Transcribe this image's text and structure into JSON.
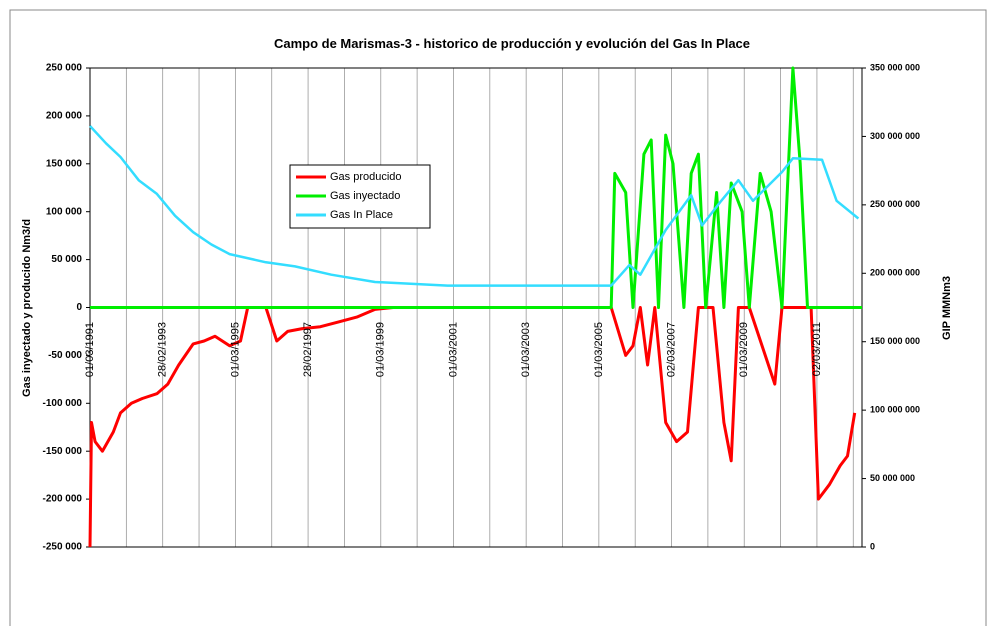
{
  "chart_data": {
    "type": "line",
    "title": "Campo de Marismas-3  -  historico de producción y evolución del Gas In Place",
    "ylabel": "Gas inyectado y producido Nm3/d",
    "y2label": "GIP MMNm3",
    "xlim": [
      1991.16,
      2012.4
    ],
    "xticks": [
      {
        "value": 1991.16,
        "label": "01/03/1991"
      },
      {
        "value": 1993.16,
        "label": "28/02/1993"
      },
      {
        "value": 1995.16,
        "label": "01/03/1995"
      },
      {
        "value": 1997.16,
        "label": "28/02/1997"
      },
      {
        "value": 1999.16,
        "label": "01/03/1999"
      },
      {
        "value": 2001.16,
        "label": "01/03/2001"
      },
      {
        "value": 2003.16,
        "label": "01/03/2003"
      },
      {
        "value": 2005.16,
        "label": "01/03/2005"
      },
      {
        "value": 2007.16,
        "label": "02/03/2007"
      },
      {
        "value": 2009.16,
        "label": "01/03/2009"
      },
      {
        "value": 2011.16,
        "label": "02/03/2011"
      }
    ],
    "ylim": [
      -250000,
      250000
    ],
    "yticks": [
      {
        "value": -250000,
        "label": "-250 000"
      },
      {
        "value": -200000,
        "label": "-200 000"
      },
      {
        "value": -150000,
        "label": "-150 000"
      },
      {
        "value": -100000,
        "label": "-100 000"
      },
      {
        "value": -50000,
        "label": "-50 000"
      },
      0,
      {
        "value": 50000,
        "label": "50 000"
      },
      {
        "value": 100000,
        "label": "100 000"
      },
      {
        "value": 150000,
        "label": "150 000"
      },
      {
        "value": 200000,
        "label": "200 000"
      },
      {
        "value": 250000,
        "label": "250 000"
      }
    ],
    "y2lim": [
      0,
      350000000
    ],
    "y2ticks": [
      0,
      {
        "value": 50000000,
        "label": "50 000 000"
      },
      {
        "value": 100000000,
        "label": "100 000 000"
      },
      {
        "value": 150000000,
        "label": "150 000 000"
      },
      {
        "value": 200000000,
        "label": "200 000 000"
      },
      {
        "value": 250000000,
        "label": "250 000 000"
      },
      {
        "value": 300000000,
        "label": "300 000 000"
      },
      {
        "value": 350000000,
        "label": "350 000 000"
      }
    ],
    "series": [
      {
        "name": "Gas producido",
        "color": "#ff0000",
        "x": [
          1991.16,
          1991.2,
          1991.3,
          1991.5,
          1991.8,
          1992.0,
          1992.3,
          1992.6,
          1993.0,
          1993.3,
          1993.6,
          1994.0,
          1994.3,
          1994.6,
          1995.0,
          1995.3,
          1995.5,
          1996.0,
          1996.3,
          1996.6,
          1997.0,
          1997.5,
          1998.0,
          1998.5,
          1999.0,
          1999.5,
          2005.5,
          2005.9,
          2006.1,
          2006.3,
          2006.5,
          2006.7,
          2007.0,
          2007.3,
          2007.6,
          2007.9,
          2008.3,
          2008.6,
          2008.8,
          2009.0,
          2009.3,
          2010.0,
          2010.2,
          2011.0,
          2011.2,
          2011.5,
          2011.8,
          2012.0,
          2012.2
        ],
        "values": [
          -250000,
          -120000,
          -140000,
          -150000,
          -130000,
          -110000,
          -100000,
          -95000,
          -90000,
          -80000,
          -60000,
          -38000,
          -35000,
          -30000,
          -40000,
          -35000,
          0,
          0,
          -35000,
          -25000,
          -22000,
          -20000,
          -15000,
          -10000,
          -2000,
          0,
          0,
          -50000,
          -40000,
          0,
          -60000,
          0,
          -120000,
          -140000,
          -130000,
          0,
          0,
          -120000,
          -160000,
          0,
          0,
          -80000,
          0,
          0,
          -200000,
          -185000,
          -165000,
          -155000,
          -110000
        ]
      },
      {
        "name": "Gas inyectado",
        "color": "#00ee00",
        "x": [
          1991.16,
          2005.5,
          2005.6,
          2005.9,
          2006.1,
          2006.4,
          2006.6,
          2006.8,
          2007.0,
          2007.2,
          2007.5,
          2007.7,
          2007.9,
          2008.1,
          2008.4,
          2008.6,
          2008.8,
          2009.1,
          2009.3,
          2009.6,
          2009.9,
          2010.2,
          2010.5,
          2010.7,
          2010.9,
          2012.4
        ],
        "values": [
          0,
          0,
          140000,
          120000,
          0,
          160000,
          175000,
          0,
          180000,
          150000,
          0,
          140000,
          160000,
          0,
          120000,
          0,
          130000,
          100000,
          0,
          140000,
          100000,
          0,
          250000,
          150000,
          0,
          0
        ]
      },
      {
        "name": "Gas In Place",
        "color": "#33ddff",
        "axis": "y2",
        "x": [
          1991.16,
          1991.6,
          1992.0,
          1992.5,
          1993.0,
          1993.5,
          1994.0,
          1994.5,
          1995.0,
          1996.0,
          1996.8,
          1997.8,
          1999.0,
          2001.0,
          2003.0,
          2005.5,
          2006.0,
          2006.3,
          2007.0,
          2007.7,
          2008.0,
          2008.5,
          2009.0,
          2009.4,
          2010.2,
          2010.5,
          2011.3,
          2011.7,
          2012.3
        ],
        "values": [
          307600000,
          295000000,
          285000000,
          268000000,
          258000000,
          242000000,
          230000000,
          221000000,
          214000000,
          208000000,
          205000000,
          199000000,
          193600000,
          191000000,
          191000000,
          191000000,
          206000000,
          199000000,
          231600000,
          257000000,
          235000000,
          252000000,
          268000000,
          253000000,
          274000000,
          284000000,
          283000000,
          253000000,
          240000000
        ]
      }
    ],
    "legend": "upper-left"
  }
}
